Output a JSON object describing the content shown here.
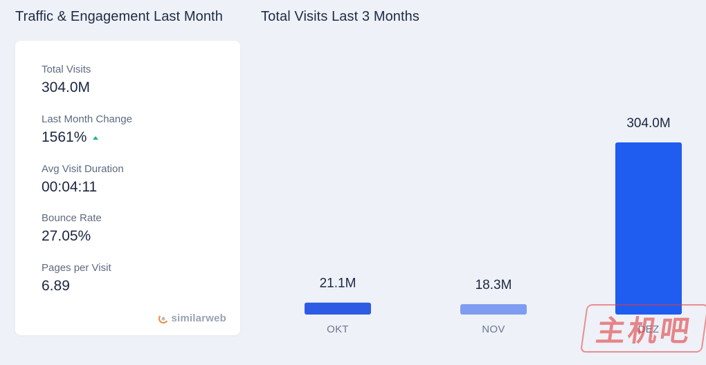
{
  "header": {
    "left_title": "Traffic & Engagement Last Month",
    "right_title": "Total Visits Last 3 Months"
  },
  "metrics": [
    {
      "label": "Total Visits",
      "value": "304.0M"
    },
    {
      "label": "Last Month Change",
      "value": "1561%",
      "trend": "up"
    },
    {
      "label": "Avg Visit Duration",
      "value": "00:04:11"
    },
    {
      "label": "Bounce Rate",
      "value": "27.05%"
    },
    {
      "label": "Pages per Visit",
      "value": "6.89"
    }
  ],
  "brand": {
    "name": "similarweb",
    "icon": "similarweb-logo-icon"
  },
  "watermark": {
    "text": "主机吧"
  },
  "colors": {
    "bar_primary": "#2d5be3",
    "bar_highlight": "#1f5cf0",
    "bar_muted": "#7e9cf0",
    "trend_up": "#16b58a"
  },
  "chart_data": {
    "type": "bar",
    "title": "Total Visits Last 3 Months",
    "categories": [
      "OKT",
      "NOV",
      "DEZ"
    ],
    "values": [
      21.1,
      18.3,
      304.0
    ],
    "value_labels": [
      "21.1M",
      "18.3M",
      "304.0M"
    ],
    "units": "M",
    "ylim": [
      0,
      304.0
    ],
    "grid": false,
    "bar_colors": [
      "#2d5be3",
      "#7e9cf0",
      "#1f5cf0"
    ]
  }
}
